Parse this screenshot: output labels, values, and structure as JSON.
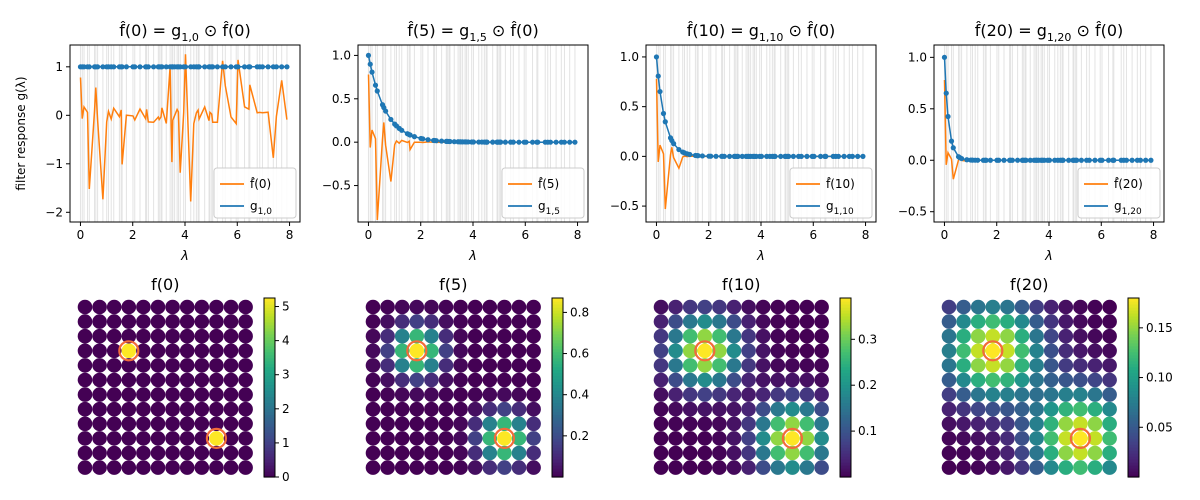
{
  "chart_data": [
    {
      "type": "line",
      "title_main": "f̂(0) = g",
      "title_sub": "1,0",
      "title_tail": " ⊙ f̂(0)",
      "ylabel": "filter response g(λ)",
      "xlabel": "λ",
      "xlim": [
        -0.4,
        8.4
      ],
      "ylim": [
        -2.2,
        1.45
      ],
      "xticks": [
        0,
        2,
        4,
        6,
        8
      ],
      "yticks": [
        -2,
        -1,
        0,
        1
      ],
      "legend_loc": "lower-right",
      "legend": [
        {
          "label": "f̂(0)",
          "sub": "",
          "color": "#ff7f0e"
        },
        {
          "label": "g",
          "sub": "1,0",
          "color": "#1f77b4"
        }
      ],
      "filter_t": 0
    },
    {
      "type": "line",
      "title_main": "f̂(5) = g",
      "title_sub": "1,5",
      "title_tail": " ⊙ f̂(0)",
      "ylabel": "",
      "xlabel": "λ",
      "xlim": [
        -0.4,
        8.4
      ],
      "ylim": [
        -0.92,
        1.12
      ],
      "xticks": [
        0,
        2,
        4,
        6,
        8
      ],
      "yticks": [
        -0.5,
        0.0,
        0.5,
        1.0
      ],
      "legend_loc": "lower-right",
      "legend": [
        {
          "label": "f̂(5)",
          "sub": "",
          "color": "#ff7f0e"
        },
        {
          "label": "g",
          "sub": "1,5",
          "color": "#1f77b4"
        }
      ],
      "filter_t": 5
    },
    {
      "type": "line",
      "title_main": "f̂(10) = g",
      "title_sub": "1,10",
      "title_tail": " ⊙ f̂(0)",
      "ylabel": "",
      "xlabel": "λ",
      "xlim": [
        -0.4,
        8.4
      ],
      "ylim": [
        -0.66,
        1.12
      ],
      "xticks": [
        0,
        2,
        4,
        6,
        8
      ],
      "yticks": [
        -0.5,
        0.0,
        0.5,
        1.0
      ],
      "legend_loc": "lower-right",
      "legend": [
        {
          "label": "f̂(10)",
          "sub": "",
          "color": "#ff7f0e"
        },
        {
          "label": "g",
          "sub": "1,10",
          "color": "#1f77b4"
        }
      ],
      "filter_t": 10
    },
    {
      "type": "line",
      "title_main": "f̂(20) = g",
      "title_sub": "1,20",
      "title_tail": " ⊙ f̂(0)",
      "ylabel": "",
      "xlabel": "λ",
      "xlim": [
        -0.4,
        8.4
      ],
      "ylim": [
        -0.6,
        1.12
      ],
      "xticks": [
        0,
        2,
        4,
        6,
        8
      ],
      "yticks": [
        -0.5,
        0.0,
        0.5,
        1.0
      ],
      "legend_loc": "lower-right",
      "legend": [
        {
          "label": "f̂(20)",
          "sub": "",
          "color": "#ff7f0e"
        },
        {
          "label": "g",
          "sub": "1,20",
          "color": "#1f77b4"
        }
      ],
      "filter_t": 20
    },
    {
      "type": "heatmap",
      "title": "f(0)",
      "colorbar_ticks": [
        0,
        1,
        2,
        3,
        4,
        5
      ],
      "vmax": 5.25,
      "sigma": 0.0,
      "peak": 5.25
    },
    {
      "type": "heatmap",
      "title": "f(5)",
      "colorbar_ticks": [
        0.2,
        0.4,
        0.6,
        0.8
      ],
      "vmax": 0.87,
      "sigma": 1.1,
      "peak": 0.87
    },
    {
      "type": "heatmap",
      "title": "f(10)",
      "colorbar_ticks": [
        0.1,
        0.2,
        0.3
      ],
      "vmax": 0.39,
      "sigma": 1.65,
      "peak": 0.39
    },
    {
      "type": "heatmap",
      "title": "f(20)",
      "colorbar_ticks": [
        0.05,
        0.1,
        0.15
      ],
      "vmax": 0.18,
      "sigma": 2.3,
      "peak": 0.18
    }
  ],
  "graph": {
    "grid_size": 12,
    "sources": [
      [
        3,
        3
      ],
      [
        9,
        9
      ]
    ],
    "lambda_max": 7.9,
    "n_eigenvalues": 144
  },
  "colors": {
    "signal": "#ff7f0e",
    "filter": "#1f77b4",
    "eigen_lines": "#e3e3e3",
    "source_ring": "#f26b3a"
  }
}
